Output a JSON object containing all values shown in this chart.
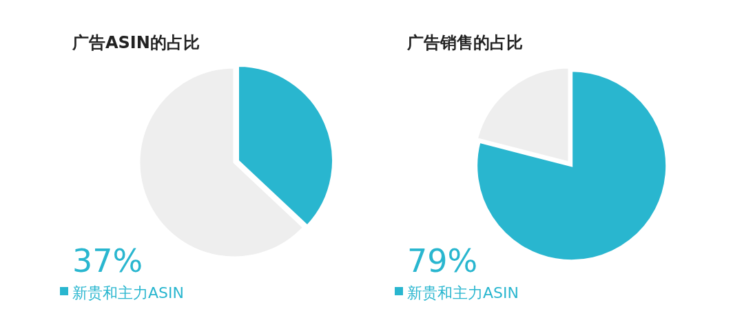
{
  "chart_data": [
    {
      "type": "pie",
      "title": "广告ASIN的占比",
      "categories": [
        "新贵和主力ASIN",
        null
      ],
      "values": [
        37,
        63
      ],
      "colors": [
        "#29b6cf",
        "#eeeeee"
      ],
      "value_labels": [
        "37%",
        null
      ]
    },
    {
      "type": "pie",
      "title": "广告销售的占比",
      "categories": [
        "新贵和主力ASIN",
        null
      ],
      "values": [
        79,
        21
      ],
      "colors": [
        "#29b6cf",
        "#eeeeee"
      ],
      "value_labels": [
        "79%",
        null
      ]
    }
  ]
}
